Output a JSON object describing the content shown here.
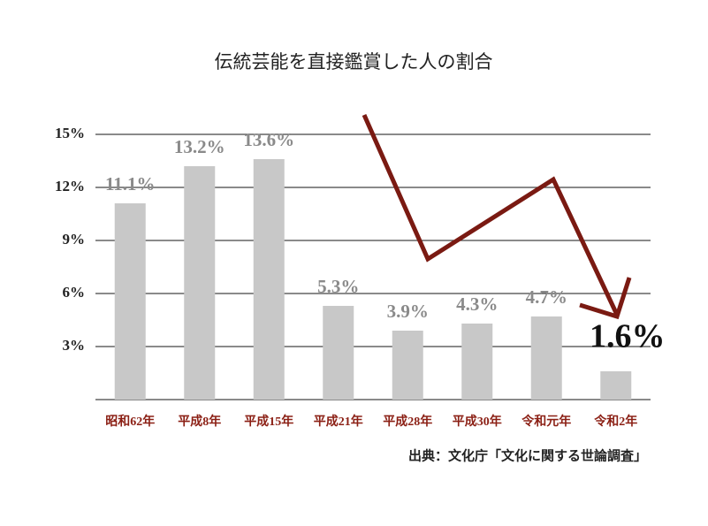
{
  "chart_data": {
    "type": "bar",
    "title": "伝統芸能を直接鑑賞した人の割合",
    "source": "出典：文化庁「文化に関する世論調査」",
    "categories": [
      "昭和62年",
      "平成8年",
      "平成15年",
      "平成21年",
      "平成28年",
      "平成30年",
      "令和元年",
      "令和2年"
    ],
    "values": [
      11.1,
      13.2,
      13.6,
      5.3,
      3.9,
      4.3,
      4.7,
      1.6
    ],
    "value_labels": [
      "11.1%",
      "13.2%",
      "13.6%",
      "5.3%",
      "3.9%",
      "4.3%",
      "4.7%",
      "1.6%"
    ],
    "color": "#c8c8c8",
    "ylim": [
      0,
      15
    ],
    "yticks": [
      {
        "value": 3,
        "label": "3%"
      },
      {
        "value": 6,
        "label": "6%"
      },
      {
        "value": 9,
        "label": "9%"
      },
      {
        "value": 12,
        "label": "12%"
      },
      {
        "value": 15,
        "label": "15%"
      }
    ],
    "grid": true
  }
}
